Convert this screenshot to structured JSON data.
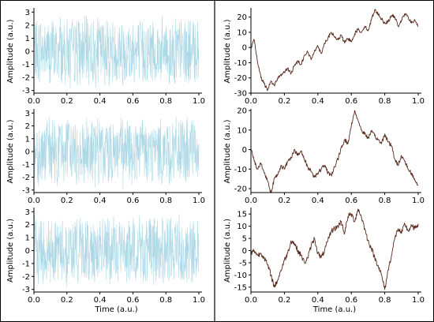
{
  "figure": {
    "left_panel_color": "#add8e6",
    "right_panel_color": "#5a2a1e",
    "border_color": "#000000"
  },
  "chart_data": [
    {
      "id": "left-1",
      "type": "line",
      "color": "#add8e6",
      "xlabel": "",
      "ylabel": "Amplitude (a.u.)",
      "xlim": [
        0.0,
        1.0
      ],
      "ylim": [
        -3.2,
        3.2
      ],
      "xticks": [
        "0.0",
        "0.2",
        "0.4",
        "0.6",
        "0.8",
        "1.0"
      ],
      "yticks": [
        "-3",
        "-2",
        "-1",
        "0",
        "1",
        "2",
        "3"
      ],
      "x": [
        0.0,
        0.02,
        0.04,
        0.06,
        0.08,
        0.1,
        0.12,
        0.14,
        0.16,
        0.18,
        0.2,
        0.22,
        0.24,
        0.26,
        0.28,
        0.3,
        0.32,
        0.34,
        0.36,
        0.38,
        0.4,
        0.42,
        0.44,
        0.46,
        0.48,
        0.5,
        0.52,
        0.54,
        0.56,
        0.58,
        0.6,
        0.62,
        0.64,
        0.66,
        0.68,
        0.7,
        0.72,
        0.74,
        0.76,
        0.78,
        0.8,
        0.82,
        0.84,
        0.86,
        0.88,
        0.9,
        0.92,
        0.94,
        0.96,
        0.98,
        1.0
      ],
      "y": [
        0.3,
        -1.2,
        2.1,
        -0.6,
        1.4,
        -2.4,
        0.8,
        -1.7,
        2.6,
        -0.3,
        1.1,
        -2.8,
        0.5,
        2.3,
        -1.5,
        0.9,
        -0.7,
        1.9,
        -2.2,
        0.2,
        1.6,
        -1.1,
        2.4,
        -2.0,
        0.7,
        -0.4,
        1.8,
        -2.6,
        1.2,
        -0.9,
        2.0,
        -1.4,
        0.4,
        -2.3,
        1.5,
        -0.2,
        2.2,
        -1.8,
        0.6,
        -1.0,
        1.7,
        -2.5,
        0.9,
        2.5,
        -1.3,
        0.1,
        -1.9,
        1.3,
        -0.8,
        2.0,
        -0.5
      ]
    },
    {
      "id": "left-2",
      "type": "line",
      "color": "#add8e6",
      "xlabel": "",
      "ylabel": "Amplitude (a.u.)",
      "xlim": [
        0.0,
        1.0
      ],
      "ylim": [
        -3.2,
        3.2
      ],
      "xticks": [
        "0.0",
        "0.2",
        "0.4",
        "0.6",
        "0.8",
        "1.0"
      ],
      "yticks": [
        "-3",
        "-2",
        "-1",
        "0",
        "1",
        "2",
        "3"
      ],
      "x": [
        0.0,
        0.02,
        0.04,
        0.06,
        0.08,
        0.1,
        0.12,
        0.14,
        0.16,
        0.18,
        0.2,
        0.22,
        0.24,
        0.26,
        0.28,
        0.3,
        0.32,
        0.34,
        0.36,
        0.38,
        0.4,
        0.42,
        0.44,
        0.46,
        0.48,
        0.5,
        0.52,
        0.54,
        0.56,
        0.58,
        0.6,
        0.62,
        0.64,
        0.66,
        0.68,
        0.7,
        0.72,
        0.74,
        0.76,
        0.78,
        0.8,
        0.82,
        0.84,
        0.86,
        0.88,
        0.9,
        0.92,
        0.94,
        0.96,
        0.98,
        1.0
      ],
      "y": [
        -0.4,
        1.3,
        -2.1,
        0.8,
        2.4,
        -1.6,
        0.3,
        -2.7,
        1.9,
        -0.7,
        2.2,
        -1.2,
        0.6,
        -2.0,
        1.5,
        -0.1,
        2.6,
        -1.8,
        0.9,
        -0.5,
        1.7,
        -2.4,
        1.0,
        -1.3,
        2.1,
        -0.6,
        1.4,
        -2.9,
        0.7,
        2.0,
        -1.0,
        0.4,
        -1.9,
        2.5,
        -0.8,
        1.2,
        -2.2,
        0.5,
        1.8,
        -1.5,
        0.2,
        -2.6,
        1.6,
        -0.3,
        2.3,
        -1.1,
        0.8,
        -2.0,
        1.1,
        -0.9,
        0.6
      ]
    },
    {
      "id": "left-3",
      "type": "line",
      "color": "#add8e6",
      "xlabel": "Time (a.u.)",
      "ylabel": "Amplitude (a.u.)",
      "xlim": [
        0.0,
        1.0
      ],
      "ylim": [
        -3.2,
        3.2
      ],
      "xticks": [
        "0.0",
        "0.2",
        "0.4",
        "0.6",
        "0.8",
        "1.0"
      ],
      "yticks": [
        "-3",
        "-2",
        "-1",
        "0",
        "1",
        "2",
        "3"
      ],
      "x": [
        0.0,
        0.02,
        0.04,
        0.06,
        0.08,
        0.1,
        0.12,
        0.14,
        0.16,
        0.18,
        0.2,
        0.22,
        0.24,
        0.26,
        0.28,
        0.3,
        0.32,
        0.34,
        0.36,
        0.38,
        0.4,
        0.42,
        0.44,
        0.46,
        0.48,
        0.5,
        0.52,
        0.54,
        0.56,
        0.58,
        0.6,
        0.62,
        0.64,
        0.66,
        0.68,
        0.7,
        0.72,
        0.74,
        0.76,
        0.78,
        0.8,
        0.82,
        0.84,
        0.86,
        0.88,
        0.9,
        0.92,
        0.94,
        0.96,
        0.98,
        1.0
      ],
      "y": [
        0.9,
        -1.8,
        2.3,
        -0.4,
        1.1,
        -2.5,
        0.6,
        1.9,
        -1.3,
        0.2,
        -2.8,
        1.6,
        -0.9,
        2.4,
        -0.6,
        1.3,
        -2.1,
        0.5,
        2.0,
        -1.5,
        0.8,
        -0.2,
        1.8,
        -2.6,
        1.0,
        -1.1,
        2.2,
        -0.7,
        0.4,
        -2.3,
        1.5,
        -0.5,
        2.7,
        -1.7,
        0.3,
        -1.0,
        1.9,
        -2.4,
        0.8,
        1.4,
        -0.9,
        -2.1,
        1.2,
        -0.3,
        2.8,
        -1.6,
        0.5,
        -2.2,
        1.7,
        -0.8,
        0.4
      ]
    },
    {
      "id": "right-1",
      "type": "line",
      "color": "#5a2a1e",
      "xlabel": "",
      "ylabel": "Amplitude (a.u.)",
      "xlim": [
        0.0,
        1.0
      ],
      "ylim": [
        -30,
        25
      ],
      "xticks": [
        "0.0",
        "0.2",
        "0.4",
        "0.6",
        "0.8",
        "1.0"
      ],
      "yticks": [
        "-30",
        "-20",
        "-10",
        "0",
        "10",
        "20"
      ],
      "x": [
        0.0,
        0.02,
        0.04,
        0.06,
        0.08,
        0.1,
        0.12,
        0.14,
        0.16,
        0.18,
        0.2,
        0.22,
        0.24,
        0.26,
        0.28,
        0.3,
        0.32,
        0.34,
        0.36,
        0.38,
        0.4,
        0.42,
        0.44,
        0.46,
        0.48,
        0.5,
        0.52,
        0.54,
        0.56,
        0.58,
        0.6,
        0.62,
        0.64,
        0.66,
        0.68,
        0.7,
        0.72,
        0.74,
        0.76,
        0.78,
        0.8,
        0.82,
        0.84,
        0.86,
        0.88,
        0.9,
        0.92,
        0.94,
        0.96,
        0.98,
        1.0
      ],
      "y": [
        0,
        5,
        -10,
        -20,
        -24,
        -28,
        -22,
        -25,
        -20,
        -18,
        -16,
        -14,
        -17,
        -12,
        -9,
        -11,
        -5,
        -3,
        -8,
        -2,
        1,
        -4,
        3,
        6,
        10,
        7,
        5,
        8,
        3,
        6,
        4,
        9,
        12,
        10,
        14,
        11,
        18,
        25,
        22,
        19,
        16,
        17,
        21,
        20,
        14,
        18,
        22,
        20,
        16,
        18,
        14
      ]
    },
    {
      "id": "right-2",
      "type": "line",
      "color": "#5a2a1e",
      "xlabel": "",
      "ylabel": "Amplitude (a.u.)",
      "xlim": [
        0.0,
        1.0
      ],
      "ylim": [
        -22,
        20
      ],
      "xticks": [
        "0.0",
        "0.2",
        "0.4",
        "0.6",
        "0.8",
        "1.0"
      ],
      "yticks": [
        "-20",
        "-10",
        "0",
        "10",
        "20"
      ],
      "x": [
        0.0,
        0.02,
        0.04,
        0.06,
        0.08,
        0.1,
        0.12,
        0.14,
        0.16,
        0.18,
        0.2,
        0.22,
        0.24,
        0.26,
        0.28,
        0.3,
        0.32,
        0.34,
        0.36,
        0.38,
        0.4,
        0.42,
        0.44,
        0.46,
        0.48,
        0.5,
        0.52,
        0.54,
        0.56,
        0.58,
        0.6,
        0.62,
        0.64,
        0.66,
        0.68,
        0.7,
        0.72,
        0.74,
        0.76,
        0.78,
        0.8,
        0.82,
        0.84,
        0.86,
        0.88,
        0.9,
        0.92,
        0.94,
        0.96,
        0.98,
        1.0
      ],
      "y": [
        0,
        -6,
        -10,
        -7,
        -12,
        -16,
        -22,
        -15,
        -13,
        -8,
        -10,
        -6,
        -4,
        0,
        -3,
        -1,
        -5,
        -9,
        -11,
        -14,
        -12,
        -10,
        -8,
        -12,
        -13,
        -9,
        -5,
        1,
        5,
        3,
        12,
        20,
        15,
        10,
        8,
        6,
        9,
        7,
        5,
        3,
        8,
        4,
        2,
        -5,
        -8,
        -3,
        -6,
        -10,
        -12,
        -16,
        -18
      ]
    },
    {
      "id": "right-3",
      "type": "line",
      "color": "#5a2a1e",
      "xlabel": "Time (a.u.)",
      "ylabel": "Amplitude (a.u.)",
      "xlim": [
        0.0,
        1.0
      ],
      "ylim": [
        -17,
        17
      ],
      "xticks": [
        "0.0",
        "0.2",
        "0.4",
        "0.6",
        "0.8",
        "1.0"
      ],
      "yticks": [
        "-15",
        "-10",
        "-5",
        "0",
        "5",
        "10",
        "15"
      ],
      "x": [
        0.0,
        0.02,
        0.04,
        0.06,
        0.08,
        0.1,
        0.12,
        0.14,
        0.16,
        0.18,
        0.2,
        0.22,
        0.24,
        0.26,
        0.28,
        0.3,
        0.32,
        0.34,
        0.36,
        0.38,
        0.4,
        0.42,
        0.44,
        0.46,
        0.48,
        0.5,
        0.52,
        0.54,
        0.56,
        0.58,
        0.6,
        0.62,
        0.64,
        0.66,
        0.68,
        0.7,
        0.72,
        0.74,
        0.76,
        0.78,
        0.8,
        0.82,
        0.84,
        0.86,
        0.88,
        0.9,
        0.92,
        0.94,
        0.96,
        0.98,
        1.0
      ],
      "y": [
        -1,
        0,
        -2,
        -1,
        -3,
        -6,
        -10,
        -15,
        -12,
        -8,
        -4,
        -1,
        4,
        3,
        0,
        -2,
        -5,
        -3,
        2,
        5,
        -1,
        -3,
        0,
        4,
        8,
        9,
        10,
        12,
        7,
        14,
        15,
        12,
        17,
        14,
        9,
        4,
        1,
        -3,
        -6,
        -10,
        -16,
        -8,
        -2,
        5,
        9,
        7,
        11,
        8,
        10,
        9,
        11
      ]
    }
  ]
}
